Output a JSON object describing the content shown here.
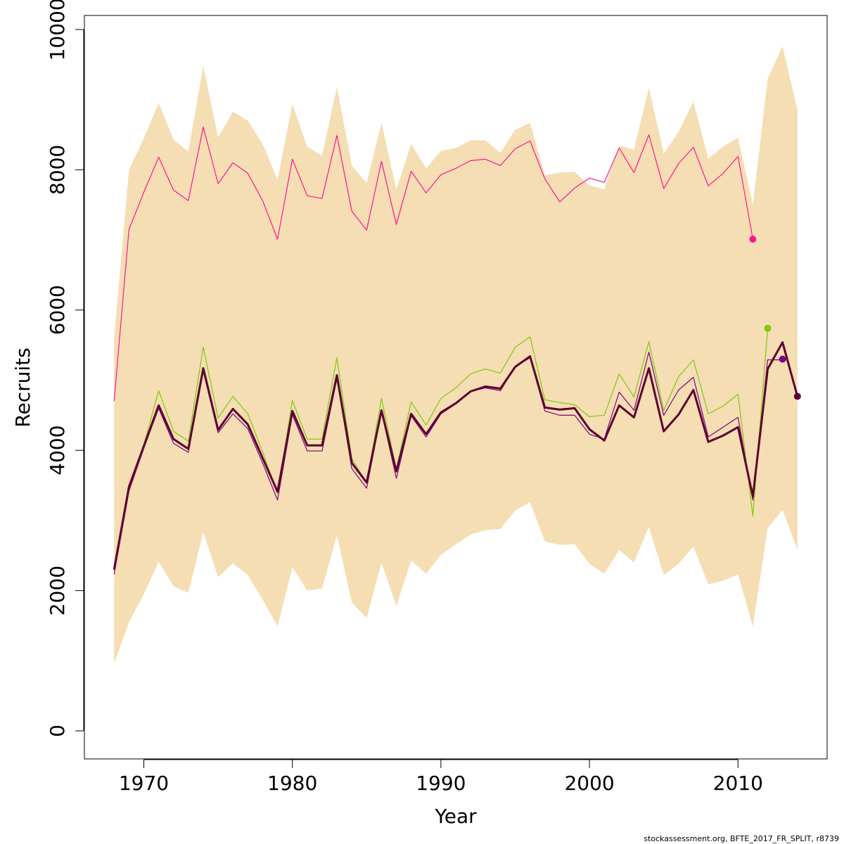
{
  "chart_data": {
    "type": "line",
    "xlabel": "Year",
    "ylabel": "Recruits",
    "xlim": [
      1966,
      2016
    ],
    "ylim": [
      -400,
      10200
    ],
    "xticks": [
      1970,
      1980,
      1990,
      2000,
      2010
    ],
    "yticks": [
      0,
      2000,
      4000,
      6000,
      8000,
      10000
    ],
    "x_tick_labels": [
      "1970",
      "1980",
      "1990",
      "2000",
      "2010"
    ],
    "y_tick_labels": [
      "0",
      "2000",
      "4000",
      "6000",
      "8000",
      "10000"
    ],
    "grid": false,
    "legend": "none",
    "x": [
      1968,
      1969,
      1970,
      1971,
      1972,
      1973,
      1974,
      1975,
      1976,
      1977,
      1978,
      1979,
      1980,
      1981,
      1982,
      1983,
      1984,
      1985,
      1986,
      1987,
      1988,
      1989,
      1990,
      1991,
      1992,
      1993,
      1994,
      1995,
      1996,
      1997,
      1998,
      1999,
      2000,
      2001,
      2002,
      2003,
      2004,
      2005,
      2006,
      2007,
      2008,
      2009,
      2010,
      2011,
      2012,
      2013,
      2014
    ],
    "band": {
      "color": "#f5deb3",
      "upper": [
        5600,
        8000,
        8450,
        8950,
        8430,
        8260,
        9480,
        8460,
        8830,
        8700,
        8370,
        7850,
        8940,
        8330,
        8200,
        9180,
        8060,
        7810,
        8670,
        7720,
        8370,
        8020,
        8270,
        8310,
        8420,
        8420,
        8240,
        8570,
        8670,
        7920,
        7960,
        7970,
        7780,
        7720,
        8340,
        8290,
        9170,
        8230,
        8540,
        8970,
        8160,
        8330,
        8460,
        7500,
        9300,
        9760,
        8850
      ],
      "lower": [
        960,
        1550,
        1950,
        2410,
        2060,
        1970,
        2830,
        2190,
        2390,
        2220,
        1870,
        1490,
        2330,
        2000,
        2030,
        2790,
        1830,
        1610,
        2400,
        1780,
        2430,
        2240,
        2510,
        2660,
        2800,
        2860,
        2880,
        3140,
        3260,
        2700,
        2650,
        2660,
        2380,
        2240,
        2580,
        2400,
        2910,
        2220,
        2380,
        2630,
        2090,
        2140,
        2230,
        1490,
        2890,
        3150,
        2580
      ]
    },
    "series": [
      {
        "color": "#ff1493",
        "width": 1.2,
        "values": [
          4700,
          7150,
          7680,
          8180,
          7710,
          7560,
          8610,
          7800,
          8100,
          7950,
          7560,
          7010,
          8150,
          7630,
          7590,
          8490,
          7410,
          7140,
          8120,
          7220,
          7980,
          7670,
          7930,
          8020,
          8130,
          8150,
          8060,
          8300,
          8410,
          7870,
          7540,
          7740,
          7880,
          7820,
          8310,
          7960,
          8500,
          7730,
          8090,
          8320,
          7770,
          7950,
          8190,
          7010,
          null,
          null,
          null
        ],
        "endpoint": {
          "x": 2011,
          "y": 7010
        }
      },
      {
        "color": "#7ec810",
        "width": 1.2,
        "values": [
          2290,
          3500,
          4080,
          4850,
          4270,
          4130,
          5470,
          4460,
          4770,
          4520,
          3980,
          3380,
          4710,
          4160,
          4160,
          5320,
          3880,
          3540,
          4740,
          3730,
          4690,
          4360,
          4740,
          4890,
          5090,
          5160,
          5100,
          5470,
          5620,
          4720,
          4680,
          4650,
          4480,
          4500,
          5090,
          4760,
          5550,
          4570,
          5050,
          5290,
          4520,
          4630,
          4800,
          3060,
          5740,
          null,
          null
        ],
        "endpoint": {
          "x": 2012,
          "y": 5740
        }
      },
      {
        "color": "#800080",
        "width": 1.2,
        "values": [
          2230,
          3420,
          4030,
          4600,
          4100,
          3970,
          5130,
          4250,
          4520,
          4310,
          3820,
          3290,
          4510,
          3990,
          3990,
          5020,
          3740,
          3460,
          4550,
          3600,
          4490,
          4190,
          4520,
          4660,
          4840,
          4890,
          4850,
          5190,
          5320,
          4560,
          4500,
          4500,
          4230,
          4160,
          4830,
          4570,
          5400,
          4500,
          4860,
          5040,
          4190,
          4330,
          4470,
          3290,
          5290,
          5290,
          null
        ],
        "endpoint": {
          "x": 2013,
          "y": 5300
        }
      },
      {
        "color": "#5c0030",
        "width": 3,
        "values": [
          2300,
          3480,
          4060,
          4640,
          4160,
          4020,
          5170,
          4290,
          4590,
          4370,
          3890,
          3410,
          4560,
          4070,
          4070,
          5070,
          3820,
          3540,
          4570,
          3700,
          4520,
          4230,
          4540,
          4670,
          4840,
          4910,
          4880,
          5190,
          5340,
          4610,
          4580,
          4600,
          4300,
          4140,
          4640,
          4470,
          5170,
          4270,
          4510,
          4860,
          4120,
          4210,
          4330,
          3340,
          5160,
          5540,
          4770
        ],
        "endpoint": {
          "x": 2014,
          "y": 4770
        }
      }
    ]
  },
  "caption": "stockassessment.org, BFTE_2017_FR_SPLIT, r8739"
}
